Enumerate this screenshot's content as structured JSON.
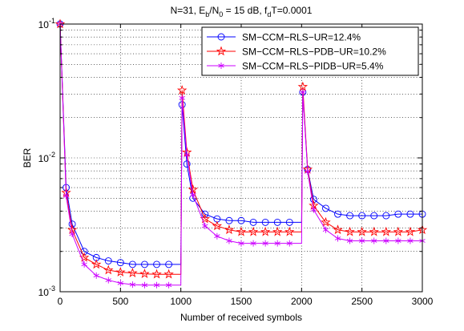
{
  "chart_data": {
    "type": "line",
    "title": {
      "parts": [
        {
          "t": "N=31, E",
          "sub": false
        },
        {
          "t": "b",
          "sub": true
        },
        {
          "t": "/N",
          "sub": false
        },
        {
          "t": "0",
          "sub": true
        },
        {
          "t": " = 15 dB, f",
          "sub": false
        },
        {
          "t": "d",
          "sub": true
        },
        {
          "t": "T=0.0001",
          "sub": false
        }
      ]
    },
    "xlabel": "Number of received symbols",
    "ylabel": "BER",
    "xlim": [
      0,
      3000
    ],
    "ylim": [
      0.001,
      0.1
    ],
    "yscale": "log",
    "grid": true,
    "legend_position": "top-right",
    "xticks": [
      {
        "value": 0,
        "label": "0"
      },
      {
        "value": 500,
        "label": "500"
      },
      {
        "value": 1000,
        "label": "1000"
      },
      {
        "value": 1500,
        "label": "1500"
      },
      {
        "value": 2000,
        "label": "2000"
      },
      {
        "value": 2500,
        "label": "2500"
      },
      {
        "value": 3000,
        "label": "3000"
      }
    ],
    "yticks": [
      {
        "value": 0.001,
        "base": "10",
        "exp": "-3"
      },
      {
        "value": 0.01,
        "base": "10",
        "exp": "-2"
      },
      {
        "value": 0.1,
        "base": "10",
        "exp": "-1"
      }
    ],
    "series": [
      {
        "name": "SM−CCM−RLS−UR=12.4%",
        "color": "#0000ff",
        "marker": "circle",
        "x": [
          0,
          50,
          100,
          200,
          300,
          400,
          500,
          600,
          700,
          800,
          900,
          1000,
          1010,
          1050,
          1100,
          1200,
          1300,
          1400,
          1500,
          1600,
          1700,
          1800,
          1900,
          2000,
          2010,
          2050,
          2100,
          2200,
          2300,
          2400,
          2500,
          2600,
          2700,
          2800,
          2900,
          3000
        ],
        "y": [
          0.1,
          0.006,
          0.0032,
          0.002,
          0.0018,
          0.0017,
          0.00165,
          0.0016,
          0.0016,
          0.0016,
          0.0016,
          0.0016,
          0.025,
          0.009,
          0.005,
          0.0038,
          0.0035,
          0.0034,
          0.0034,
          0.0033,
          0.0033,
          0.0033,
          0.0033,
          0.0033,
          0.031,
          0.0082,
          0.0049,
          0.0042,
          0.0038,
          0.0037,
          0.0037,
          0.0037,
          0.0037,
          0.0038,
          0.0038,
          0.0038
        ]
      },
      {
        "name": "SM−CCM−RLS−PDB−UR=10.2%",
        "color": "#ff0000",
        "marker": "pentagram",
        "x": [
          0,
          50,
          100,
          200,
          300,
          400,
          500,
          600,
          700,
          800,
          900,
          1000,
          1010,
          1050,
          1100,
          1200,
          1300,
          1400,
          1500,
          1600,
          1700,
          1800,
          1900,
          2000,
          2010,
          2050,
          2100,
          2200,
          2300,
          2400,
          2500,
          2600,
          2700,
          2800,
          2900,
          3000
        ],
        "y": [
          0.1,
          0.0055,
          0.0029,
          0.0018,
          0.0016,
          0.00145,
          0.0014,
          0.00138,
          0.00136,
          0.00135,
          0.00135,
          0.00135,
          0.032,
          0.011,
          0.0058,
          0.0035,
          0.0031,
          0.0029,
          0.0028,
          0.0028,
          0.0028,
          0.0028,
          0.0028,
          0.0028,
          0.034,
          0.0082,
          0.0044,
          0.0033,
          0.0029,
          0.0028,
          0.0028,
          0.0028,
          0.0028,
          0.0028,
          0.0028,
          0.0029
        ]
      },
      {
        "name": "SM−CCM−RLS−PIDB−UR=5.4%",
        "color": "#cc00ff",
        "marker": "asterisk",
        "x": [
          0,
          50,
          100,
          200,
          300,
          400,
          500,
          600,
          700,
          800,
          900,
          1000,
          1010,
          1050,
          1100,
          1200,
          1300,
          1400,
          1500,
          1600,
          1700,
          1800,
          1900,
          2000,
          2010,
          2050,
          2100,
          2200,
          2300,
          2400,
          2500,
          2600,
          2700,
          2800,
          2900,
          3000
        ],
        "y": [
          0.1,
          0.0052,
          0.0027,
          0.0016,
          0.00132,
          0.00122,
          0.00116,
          0.00113,
          0.00112,
          0.00112,
          0.00112,
          0.00112,
          0.028,
          0.0105,
          0.0053,
          0.0031,
          0.0026,
          0.0024,
          0.0023,
          0.0023,
          0.0023,
          0.0023,
          0.0023,
          0.0023,
          0.031,
          0.0079,
          0.0041,
          0.0029,
          0.0025,
          0.0024,
          0.0024,
          0.0024,
          0.0024,
          0.0024,
          0.0024,
          0.0024
        ]
      }
    ]
  }
}
